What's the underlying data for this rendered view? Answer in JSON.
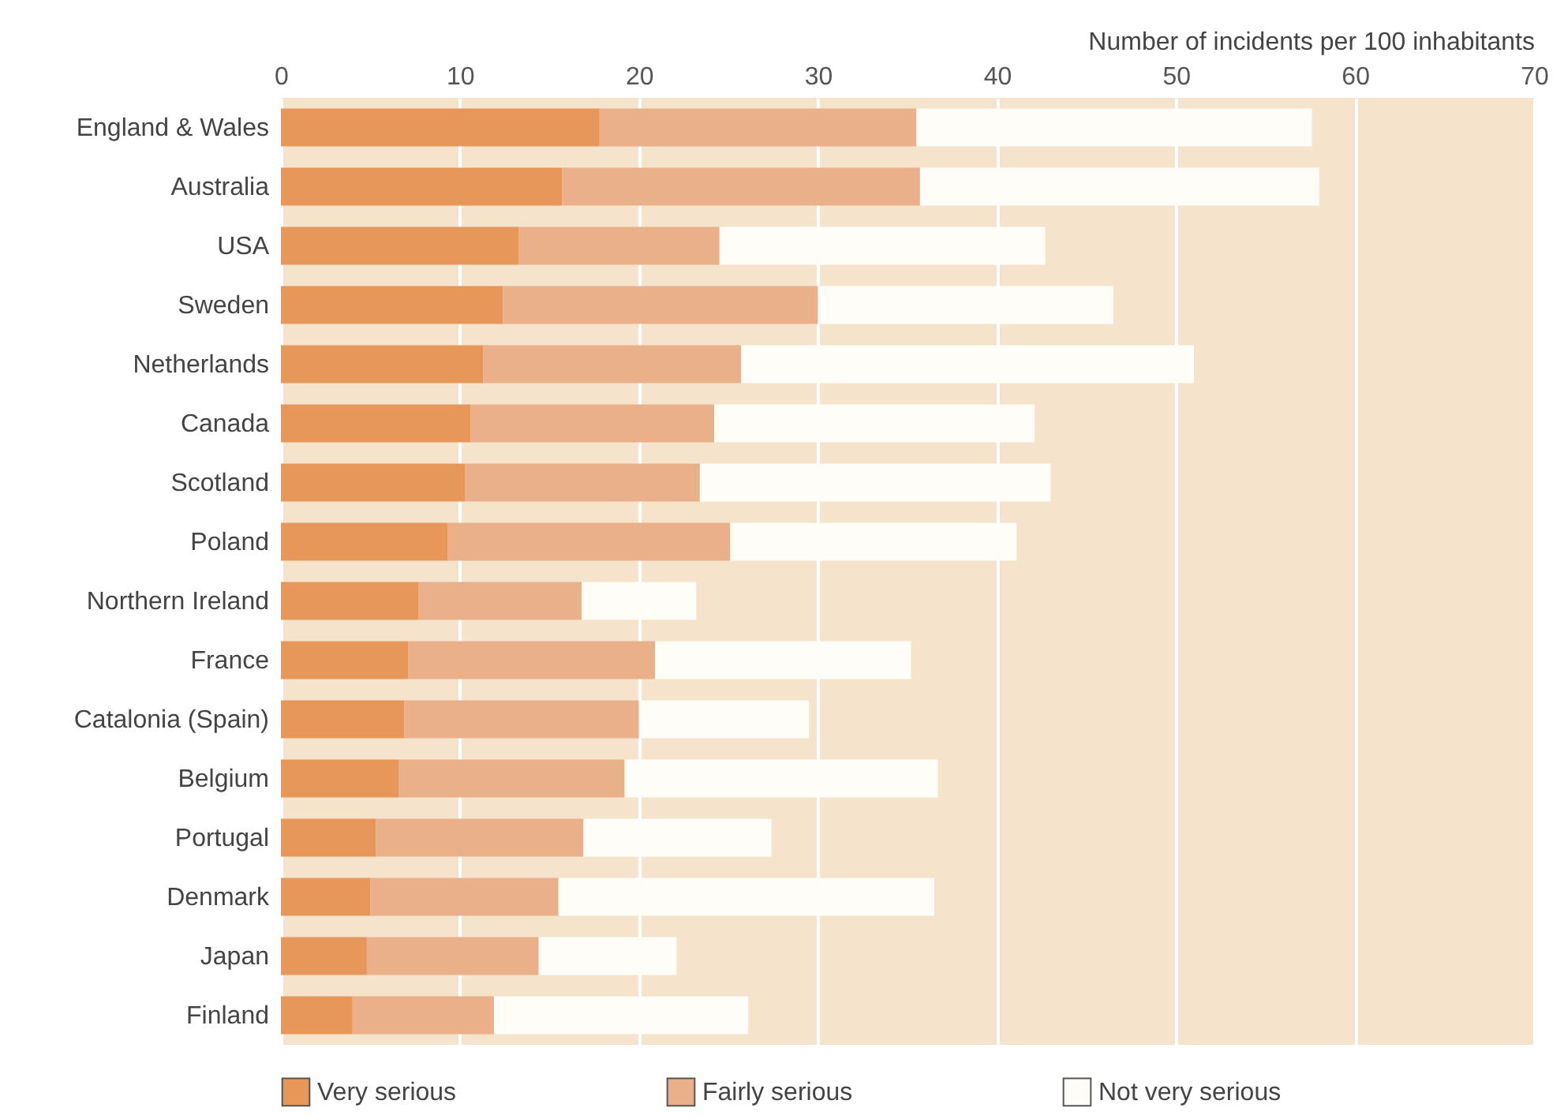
{
  "chart_data": {
    "type": "bar",
    "orientation": "horizontal",
    "stacked": true,
    "xlabel": "Number of incidents per 100 inhabitants",
    "categories": [
      "England & Wales",
      "Australia",
      "USA",
      "Sweden",
      "Netherlands",
      "Canada",
      "Scotland",
      "Poland",
      "Northern Ireland",
      "France",
      "Catalonia (Spain)",
      "Belgium",
      "Portugal",
      "Denmark",
      "Japan",
      "Finland"
    ],
    "series": [
      {
        "name": "Very serious",
        "color": "#e8975a",
        "values": [
          17.8,
          15.7,
          13.3,
          12.4,
          11.3,
          10.6,
          10.3,
          9.3,
          7.7,
          7.1,
          6.9,
          6.6,
          5.3,
          5.0,
          4.8,
          4.0
        ]
      },
      {
        "name": "Fairly serious",
        "color": "#eab08a",
        "values": [
          17.7,
          20.0,
          11.2,
          17.6,
          14.4,
          13.6,
          13.1,
          15.8,
          9.1,
          13.8,
          13.1,
          12.6,
          11.6,
          10.5,
          9.6,
          7.9
        ]
      },
      {
        "name": "Not very serious",
        "color": "#fffdf8",
        "values": [
          22.1,
          22.3,
          18.2,
          16.5,
          25.3,
          17.9,
          19.6,
          16.0,
          6.4,
          14.3,
          9.5,
          17.5,
          10.5,
          21.0,
          7.7,
          14.2
        ]
      }
    ],
    "xlim": [
      0,
      70
    ],
    "xticks": [
      0,
      10,
      20,
      30,
      40,
      50,
      60,
      70
    ],
    "grid": "x",
    "legend": "bottom"
  }
}
